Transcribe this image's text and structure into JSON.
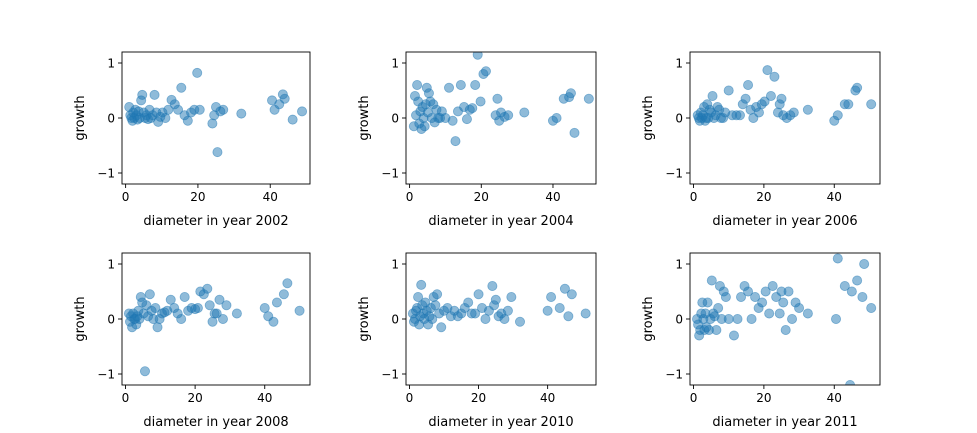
{
  "chart_data": [
    {
      "type": "scatter",
      "xlabel": "diameter in year 2002",
      "ylabel": "growth",
      "xlim": [
        -1,
        51
      ],
      "ylim": [
        -1.2,
        1.2
      ],
      "xticks": [
        0,
        20,
        40
      ],
      "yticks": [
        -1,
        0,
        1
      ],
      "color": "#1f77b4",
      "x": [
        1.0,
        1.3,
        1.6,
        1.9,
        2.1,
        2.4,
        2.7,
        3.0,
        3.3,
        3.6,
        3.9,
        4.3,
        4.6,
        5.0,
        5.4,
        5.8,
        6.2,
        6.6,
        7.0,
        7.5,
        8.0,
        8.5,
        9.0,
        9.6,
        10.2,
        11.0,
        11.8,
        12.7,
        13.6,
        14.5,
        15.4,
        16.3,
        17.2,
        18.1,
        19.0,
        19.8,
        20.5,
        24.0,
        24.5,
        25.0,
        25.4,
        26.2,
        27.0,
        32.0,
        40.5,
        41.2,
        42.5,
        43.5,
        44.0,
        46.2,
        48.8
      ],
      "y": [
        0.2,
        0.05,
        0.0,
        -0.05,
        0.1,
        0.0,
        0.15,
        0.05,
        -0.03,
        0.12,
        0.0,
        0.32,
        0.42,
        0.1,
        0.0,
        0.05,
        -0.02,
        0.15,
        0.0,
        0.05,
        0.42,
        0.1,
        -0.07,
        0.02,
        0.1,
        0.0,
        0.15,
        0.33,
        0.25,
        0.15,
        0.55,
        0.05,
        -0.05,
        0.1,
        0.15,
        0.82,
        0.15,
        -0.1,
        0.05,
        0.2,
        -0.62,
        0.12,
        0.15,
        0.08,
        0.32,
        0.15,
        0.25,
        0.43,
        0.35,
        -0.03,
        0.12
      ]
    },
    {
      "type": "scatter",
      "xlabel": "diameter in year 2004",
      "ylabel": "growth",
      "xlim": [
        -1,
        52
      ],
      "ylim": [
        -1.2,
        1.2
      ],
      "xticks": [
        0,
        20,
        40
      ],
      "yticks": [
        -1,
        0,
        1
      ],
      "color": "#1f77b4",
      "x": [
        1.2,
        1.5,
        1.8,
        2.1,
        2.4,
        2.7,
        3.0,
        3.3,
        3.6,
        3.9,
        4.2,
        4.5,
        4.8,
        5.1,
        5.4,
        5.8,
        6.2,
        6.6,
        7.0,
        7.5,
        8.0,
        8.5,
        9.0,
        10.0,
        11.0,
        12.0,
        12.8,
        13.5,
        14.3,
        15.2,
        16.0,
        16.8,
        17.5,
        18.3,
        19.0,
        19.8,
        20.6,
        21.3,
        24.0,
        24.5,
        25.0,
        25.5,
        26.5,
        27.5,
        32.0,
        40.0,
        41.0,
        43.0,
        44.5,
        45.0,
        46.0,
        50.0
      ],
      "y": [
        -0.15,
        0.4,
        0.05,
        0.6,
        0.3,
        -0.1,
        0.12,
        -0.2,
        0.2,
        0.0,
        -0.15,
        0.25,
        0.55,
        0.1,
        0.45,
        0.3,
        0.0,
        0.25,
        -0.08,
        0.15,
        0.0,
        0.0,
        0.12,
        0.0,
        0.55,
        -0.05,
        -0.42,
        0.12,
        0.6,
        0.2,
        -0.02,
        0.15,
        0.18,
        0.6,
        1.15,
        0.3,
        0.8,
        0.85,
        0.05,
        0.35,
        -0.05,
        0.1,
        0.02,
        0.05,
        0.1,
        -0.05,
        0.0,
        0.35,
        0.38,
        0.45,
        -0.27,
        0.35
      ]
    },
    {
      "type": "scatter",
      "xlabel": "diameter in year 2006",
      "ylabel": "growth",
      "xlim": [
        -1,
        53
      ],
      "ylim": [
        -1.2,
        1.2
      ],
      "xticks": [
        0,
        20,
        40
      ],
      "yticks": [
        -1,
        0,
        1
      ],
      "color": "#1f77b4",
      "x": [
        1.2,
        1.5,
        1.8,
        2.1,
        2.4,
        2.7,
        3.0,
        3.3,
        3.6,
        3.9,
        4.2,
        4.6,
        5.0,
        5.4,
        5.8,
        6.3,
        6.8,
        7.3,
        7.8,
        8.4,
        9.0,
        10.0,
        11.0,
        12.2,
        13.2,
        14.0,
        14.8,
        15.5,
        16.2,
        17.0,
        17.8,
        18.6,
        19.4,
        20.2,
        21.0,
        22.0,
        23.0,
        24.0,
        24.5,
        25.0,
        25.5,
        26.5,
        27.5,
        28.5,
        32.5,
        40.0,
        41.0,
        43.0,
        44.0,
        46.0,
        46.5,
        50.5
      ],
      "y": [
        0.05,
        0.0,
        -0.05,
        0.1,
        0.0,
        0.05,
        0.2,
        -0.05,
        0.0,
        0.25,
        0.0,
        0.15,
        0.1,
        0.4,
        0.0,
        0.05,
        0.2,
        0.15,
        0.0,
        0.0,
        0.1,
        0.5,
        0.05,
        0.05,
        0.05,
        0.25,
        0.35,
        0.6,
        0.15,
        0.0,
        0.2,
        0.1,
        0.25,
        0.3,
        0.87,
        0.4,
        0.75,
        0.1,
        0.25,
        0.35,
        0.05,
        0.0,
        0.05,
        0.1,
        0.15,
        -0.05,
        0.05,
        0.25,
        0.25,
        0.5,
        0.55,
        0.25
      ]
    },
    {
      "type": "scatter",
      "xlabel": "diameter in year 2008",
      "ylabel": "growth",
      "xlim": [
        -1,
        53
      ],
      "ylim": [
        -1.2,
        1.2
      ],
      "xticks": [
        0,
        20,
        40
      ],
      "yticks": [
        -1,
        0,
        1
      ],
      "color": "#1f77b4",
      "x": [
        1.0,
        1.3,
        1.6,
        1.9,
        2.2,
        2.5,
        2.8,
        3.1,
        3.4,
        3.7,
        4.0,
        4.4,
        4.8,
        5.2,
        5.6,
        6.0,
        6.5,
        7.0,
        7.5,
        8.0,
        8.6,
        9.2,
        9.8,
        10.5,
        11.2,
        12.0,
        13.0,
        14.0,
        15.0,
        16.0,
        17.0,
        18.0,
        19.0,
        20.0,
        20.8,
        21.5,
        22.5,
        23.5,
        24.2,
        25.0,
        25.6,
        26.2,
        27.0,
        28.0,
        29.0,
        32.0,
        40.0,
        41.0,
        42.5,
        43.5,
        45.5,
        46.5,
        50.0
      ],
      "y": [
        0.1,
        -0.05,
        0.05,
        -0.15,
        0.1,
        0.0,
        0.0,
        -0.1,
        0.05,
        0.15,
        0.0,
        0.4,
        0.3,
        0.1,
        -0.95,
        0.25,
        0.05,
        0.45,
        0.15,
        0.0,
        0.2,
        -0.15,
        0.0,
        0.1,
        0.12,
        0.15,
        0.35,
        0.2,
        0.1,
        0.0,
        0.4,
        0.15,
        0.2,
        0.18,
        0.2,
        0.5,
        0.45,
        0.55,
        0.25,
        -0.05,
        0.1,
        0.1,
        0.35,
        0.0,
        0.25,
        0.1,
        0.2,
        0.05,
        -0.05,
        0.3,
        0.45,
        0.65,
        0.15
      ]
    },
    {
      "type": "scatter",
      "xlabel": "diameter in year 2010",
      "ylabel": "growth",
      "xlim": [
        -1,
        54
      ],
      "ylim": [
        -1.2,
        1.2
      ],
      "xticks": [
        0,
        20,
        40
      ],
      "yticks": [
        -1,
        0,
        1
      ],
      "color": "#1f77b4",
      "x": [
        1.0,
        1.3,
        1.6,
        1.9,
        2.2,
        2.5,
        2.8,
        3.1,
        3.4,
        3.7,
        4.0,
        4.3,
        4.6,
        5.0,
        5.4,
        5.8,
        6.2,
        6.6,
        7.0,
        7.5,
        8.0,
        8.6,
        9.2,
        10.0,
        11.0,
        12.0,
        13.0,
        14.0,
        15.0,
        16.0,
        17.0,
        18.0,
        19.0,
        20.0,
        21.0,
        22.0,
        23.0,
        24.0,
        24.5,
        25.0,
        25.8,
        26.6,
        27.5,
        28.5,
        29.5,
        32.0,
        40.0,
        41.0,
        43.5,
        45.0,
        46.0,
        47.0,
        51.0
      ],
      "y": [
        0.1,
        -0.05,
        0.0,
        0.15,
        0.2,
        0.4,
        -0.1,
        0.05,
        0.62,
        0.25,
        0.1,
        0.0,
        0.3,
        0.15,
        -0.1,
        0.05,
        0.2,
        0.0,
        0.4,
        0.25,
        0.45,
        0.1,
        -0.15,
        0.15,
        0.2,
        0.05,
        0.15,
        0.05,
        0.1,
        0.2,
        0.3,
        0.1,
        0.1,
        0.45,
        0.2,
        0.0,
        0.15,
        0.6,
        0.25,
        0.35,
        0.05,
        0.1,
        0.0,
        0.15,
        0.4,
        -0.05,
        0.15,
        0.4,
        0.2,
        0.55,
        0.05,
        0.45,
        0.1
      ]
    },
    {
      "type": "scatter",
      "xlabel": "diameter in year 2011",
      "ylabel": "growth",
      "xlim": [
        -1,
        53
      ],
      "ylim": [
        -1.2,
        1.2
      ],
      "xticks": [
        0,
        20,
        40
      ],
      "yticks": [
        -1,
        0,
        1
      ],
      "color": "#1f77b4",
      "x": [
        1.0,
        1.3,
        1.6,
        1.9,
        2.2,
        2.5,
        2.8,
        3.1,
        3.4,
        3.7,
        4.0,
        4.4,
        4.8,
        5.2,
        5.6,
        6.0,
        6.5,
        7.0,
        7.5,
        8.0,
        8.6,
        9.2,
        10.0,
        11.5,
        12.5,
        13.5,
        14.5,
        15.5,
        16.5,
        17.5,
        18.5,
        19.5,
        20.5,
        21.5,
        22.5,
        23.5,
        24.5,
        25.0,
        25.5,
        26.2,
        27.0,
        28.0,
        29.0,
        30.0,
        32.5,
        40.5,
        41.0,
        43.0,
        44.5,
        45.0,
        46.5,
        48.0,
        48.5,
        50.5
      ],
      "y": [
        0.0,
        -0.1,
        -0.3,
        -0.2,
        0.1,
        0.3,
        0.0,
        -0.2,
        0.1,
        -0.15,
        0.3,
        -0.2,
        0.0,
        0.7,
        0.1,
        0.05,
        -0.2,
        0.2,
        0.6,
        0.0,
        0.5,
        0.4,
        0.0,
        -0.3,
        0.0,
        0.4,
        0.6,
        0.5,
        0.0,
        0.4,
        0.2,
        0.3,
        0.5,
        0.1,
        0.6,
        0.4,
        0.1,
        0.5,
        0.3,
        -0.2,
        0.5,
        0.0,
        0.3,
        0.2,
        0.1,
        0.0,
        1.1,
        0.6,
        -1.2,
        0.5,
        0.7,
        0.4,
        1.0,
        0.2
      ]
    }
  ]
}
